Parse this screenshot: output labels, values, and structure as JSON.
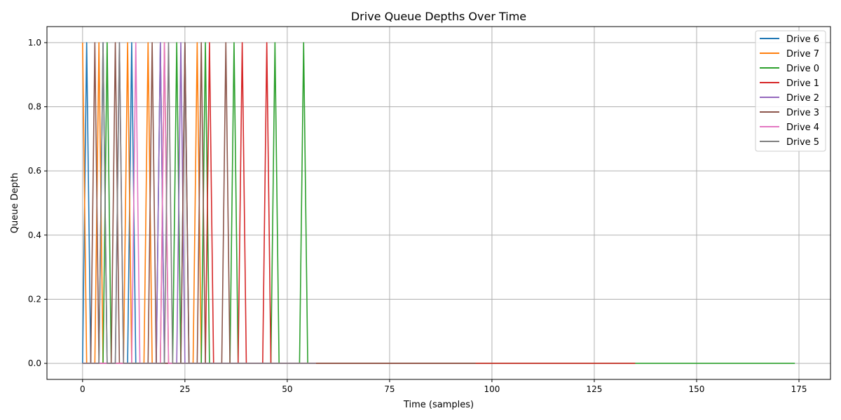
{
  "chart_data": {
    "type": "line",
    "title": "Drive Queue Depths Over Time",
    "xlabel": "Time (samples)",
    "ylabel": "Queue Depth",
    "xlim": [
      -8.7,
      182.7
    ],
    "ylim": [
      -0.05,
      1.05
    ],
    "xticks": [
      0,
      25,
      50,
      75,
      100,
      125,
      150,
      175
    ],
    "yticks": [
      0.0,
      0.2,
      0.4,
      0.6,
      0.8,
      1.0
    ],
    "xtick_labels": [
      "0",
      "25",
      "50",
      "75",
      "100",
      "125",
      "150",
      "175"
    ],
    "ytick_labels": [
      "0.0",
      "0.2",
      "0.4",
      "0.6",
      "0.8",
      "1.0"
    ],
    "grid": true,
    "legend_position": "top-right",
    "series": [
      {
        "name": "Drive 6",
        "color": "#1f77b4",
        "peaks": [
          1,
          5,
          12,
          19,
          25
        ],
        "length": 58
      },
      {
        "name": "Drive 7",
        "color": "#ff7f0e",
        "peaks": [
          0,
          4,
          11,
          16,
          20,
          28
        ],
        "length": 58
      },
      {
        "name": "Drive 0",
        "color": "#2ca02c",
        "peaks": [
          6,
          23,
          30,
          37,
          47,
          54
        ],
        "length": 175
      },
      {
        "name": "Drive 1",
        "color": "#d62728",
        "peaks": [
          31,
          39,
          45
        ],
        "length": 136
      },
      {
        "name": "Drive 2",
        "color": "#9467bd",
        "peaks": [
          9,
          19,
          24
        ],
        "length": 58
      },
      {
        "name": "Drive 3",
        "color": "#8c564b",
        "peaks": [
          3,
          8,
          17,
          25,
          29,
          35
        ],
        "length": 97
      },
      {
        "name": "Drive 4",
        "color": "#e377c2",
        "peaks": [
          13,
          20
        ],
        "length": 58
      },
      {
        "name": "Drive 5",
        "color": "#7f7f7f",
        "peaks": [
          5,
          9,
          21
        ],
        "length": 58
      }
    ]
  }
}
